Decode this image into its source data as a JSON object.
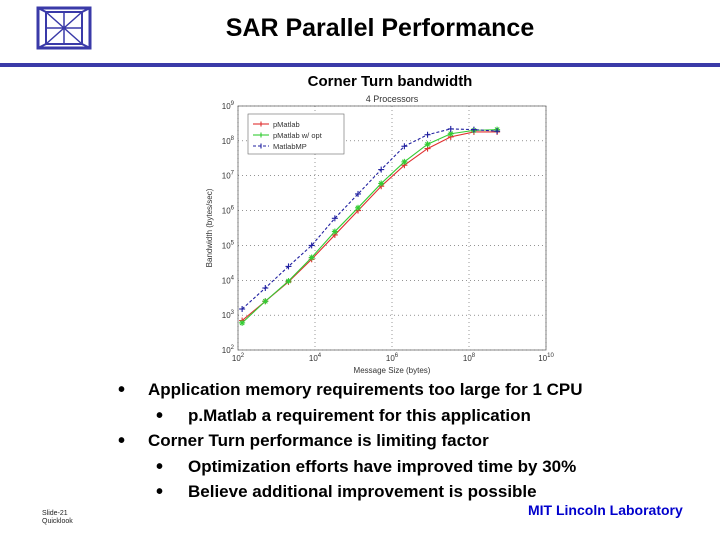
{
  "slide": {
    "title": "SAR Parallel Performance",
    "subtitle": "Corner Turn bandwidth",
    "footer_slide": "Slide-21",
    "footer_code": "Quicklook",
    "footer_org": "MIT Lincoln Laboratory"
  },
  "bullets": [
    {
      "text": "Application memory requirements too large for 1 CPU",
      "sub": [
        "p.Matlab a requirement for this application"
      ]
    },
    {
      "text": "Corner Turn performance is limiting factor",
      "sub": [
        "Optimization efforts have improved time by 30%",
        "Believe additional improvement is possible"
      ]
    }
  ],
  "chart_data": {
    "type": "line",
    "title": "4 Processors",
    "xlabel": "Message Size (bytes)",
    "ylabel": "Bandwidth (bytes/sec)",
    "x_scale": "log",
    "y_scale": "log",
    "xlim": [
      100,
      10000000000
    ],
    "ylim": [
      100,
      1000000000
    ],
    "x_ticks": [
      "10^2",
      "10^4",
      "10^6",
      "10^8",
      "10^10"
    ],
    "y_ticks": [
      "10^2",
      "10^3",
      "10^4",
      "10^5",
      "10^6",
      "10^7",
      "10^8",
      "10^9"
    ],
    "grid": true,
    "legend": "top-left",
    "x": [
      128,
      512,
      2048,
      8192,
      32768,
      131072,
      524288,
      2097152,
      8388608,
      33554432,
      134217728,
      536870912
    ],
    "series": [
      {
        "name": "pMatlab",
        "color": "#e03030",
        "values": [
          700,
          2500,
          9000,
          40000,
          200000,
          1000000,
          5000000,
          20000000,
          60000000,
          130000000,
          180000000,
          180000000
        ]
      },
      {
        "name": "pMatlab w/ opt",
        "color": "#33cc33",
        "values": [
          600,
          2500,
          9500,
          45000,
          250000,
          1200000,
          6000000,
          25000000,
          80000000,
          160000000,
          200000000,
          210000000
        ]
      },
      {
        "name": "MatlabMP",
        "color": "#2020a0",
        "values": [
          1500,
          6000,
          25000,
          100000,
          600000,
          3000000,
          15000000,
          70000000,
          150000000,
          220000000,
          210000000,
          190000000
        ]
      }
    ]
  }
}
